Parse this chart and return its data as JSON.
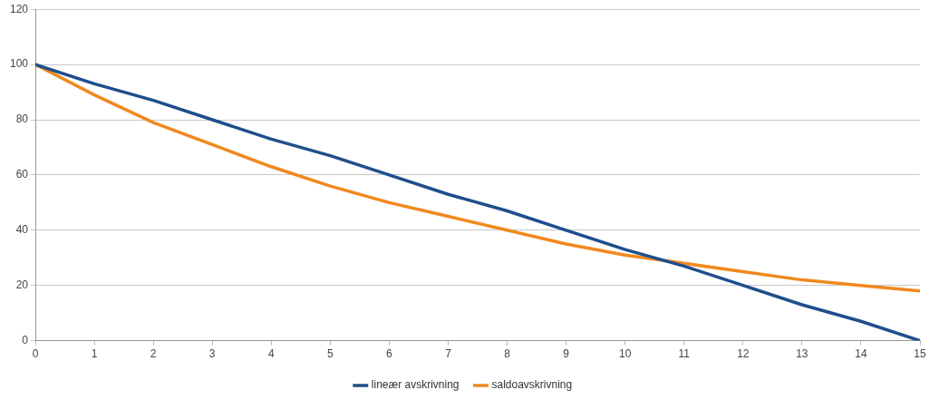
{
  "chart_data": {
    "type": "line",
    "x": [
      0,
      1,
      2,
      3,
      4,
      5,
      6,
      7,
      8,
      9,
      10,
      11,
      12,
      13,
      14,
      15
    ],
    "series": [
      {
        "name": "lineær avskrivning",
        "color": "#1f4e8c",
        "values": [
          100,
          93,
          87,
          80,
          73,
          67,
          60,
          53,
          47,
          40,
          33,
          27,
          20,
          13,
          7,
          0
        ]
      },
      {
        "name": "saldoavskrivning",
        "color": "#f0891e",
        "values": [
          100,
          89,
          79,
          71,
          63,
          56,
          50,
          45,
          40,
          35,
          31,
          28,
          25,
          22,
          20,
          18
        ]
      }
    ],
    "xlim": [
      0,
      15
    ],
    "xticks": [
      0,
      1,
      2,
      3,
      4,
      5,
      6,
      7,
      8,
      9,
      10,
      11,
      12,
      13,
      14,
      15
    ],
    "ylim": [
      0,
      120
    ],
    "yticks": [
      0,
      20,
      40,
      60,
      80,
      100,
      120
    ],
    "grid": "y",
    "legend": "bottom",
    "marker": "none",
    "line_style": "solid"
  }
}
